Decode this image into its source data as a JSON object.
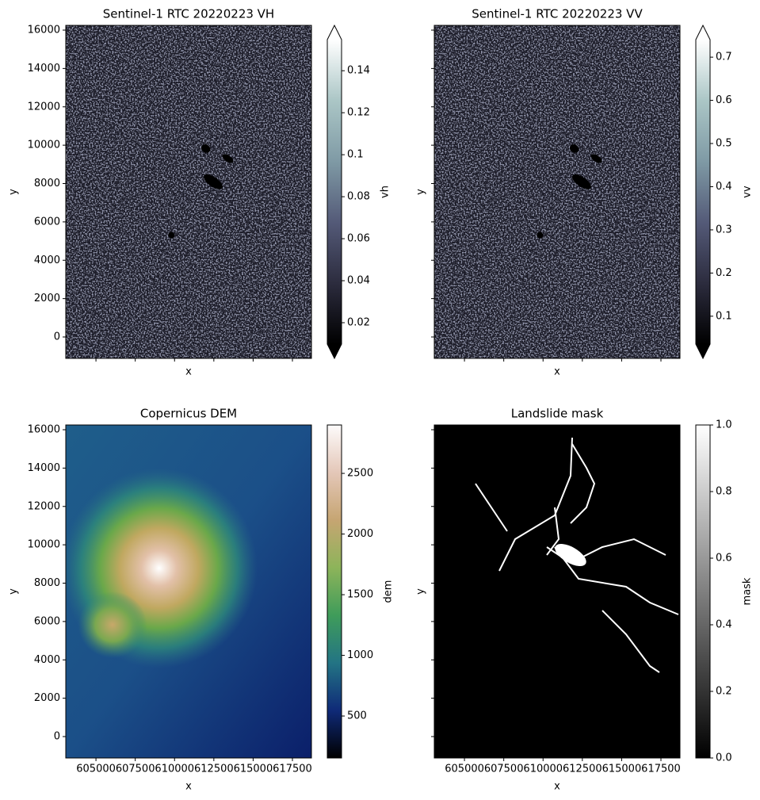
{
  "chart_data": [
    {
      "type": "image",
      "title": "Sentinel-1 RTC 20220223 VH",
      "xlabel": "x",
      "ylabel": "y",
      "xlim": [
        603080,
        618710
      ],
      "ylim": [
        -1116,
        16248
      ],
      "xticks": [
        605000,
        607500,
        610000,
        612500,
        615000,
        617500
      ],
      "yticks": [
        0,
        2000,
        4000,
        6000,
        8000,
        10000,
        12000,
        14000,
        16000
      ],
      "xticklabels": false,
      "yticklabels": true,
      "colorbar": {
        "label": "vh",
        "colormap": "bone",
        "extend": "both",
        "lim": [
          0.0098,
          0.1548
        ],
        "ticks": [
          0.02,
          0.04,
          0.06,
          0.08,
          0.1,
          0.12,
          0.14
        ]
      }
    },
    {
      "type": "image",
      "title": "Sentinel-1 RTC 20220223 VV",
      "xlabel": "x",
      "ylabel": "y",
      "xlim": [
        603080,
        618710
      ],
      "ylim": [
        -1116,
        16248
      ],
      "xticks": [
        605000,
        607500,
        610000,
        612500,
        615000,
        617500
      ],
      "yticks": [
        0,
        2000,
        4000,
        6000,
        8000,
        10000,
        12000,
        14000,
        16000
      ],
      "xticklabels": false,
      "yticklabels": false,
      "colorbar": {
        "label": "vv",
        "colormap": "bone",
        "extend": "both",
        "lim": [
          0.0354,
          0.7406
        ],
        "ticks": [
          0.1,
          0.2,
          0.3,
          0.4,
          0.5,
          0.6,
          0.7
        ]
      }
    },
    {
      "type": "image",
      "title": "Copernicus DEM",
      "xlabel": "x",
      "ylabel": "y",
      "xlim": [
        603080,
        618710
      ],
      "ylim": [
        -1116,
        16248
      ],
      "xticks": [
        605000,
        607500,
        610000,
        612500,
        615000,
        617500
      ],
      "yticks": [
        0,
        2000,
        4000,
        6000,
        8000,
        10000,
        12000,
        14000,
        16000
      ],
      "xticklabels": true,
      "yticklabels": true,
      "colorbar": {
        "label": "dem",
        "colormap": "gist_earth",
        "extend": "neither",
        "lim": [
          154,
          2899
        ],
        "ticks": [
          500,
          1000,
          1500,
          2000,
          2500
        ]
      }
    },
    {
      "type": "image",
      "title": "Landslide mask",
      "xlabel": "x",
      "ylabel": "y",
      "xlim": [
        603080,
        618710
      ],
      "ylim": [
        -1116,
        16248
      ],
      "xticks": [
        605000,
        607500,
        610000,
        612500,
        615000,
        617500
      ],
      "yticks": [
        0,
        2000,
        4000,
        6000,
        8000,
        10000,
        12000,
        14000,
        16000
      ],
      "xticklabels": true,
      "yticklabels": false,
      "colorbar": {
        "label": "mask",
        "colormap": "gray",
        "extend": "neither",
        "lim": [
          0,
          1
        ],
        "ticks": [
          {
            "value": 0,
            "label": "0.0"
          },
          0.2,
          0.4,
          0.6,
          0.8,
          {
            "value": 1,
            "label": "1.0"
          }
        ]
      }
    }
  ]
}
